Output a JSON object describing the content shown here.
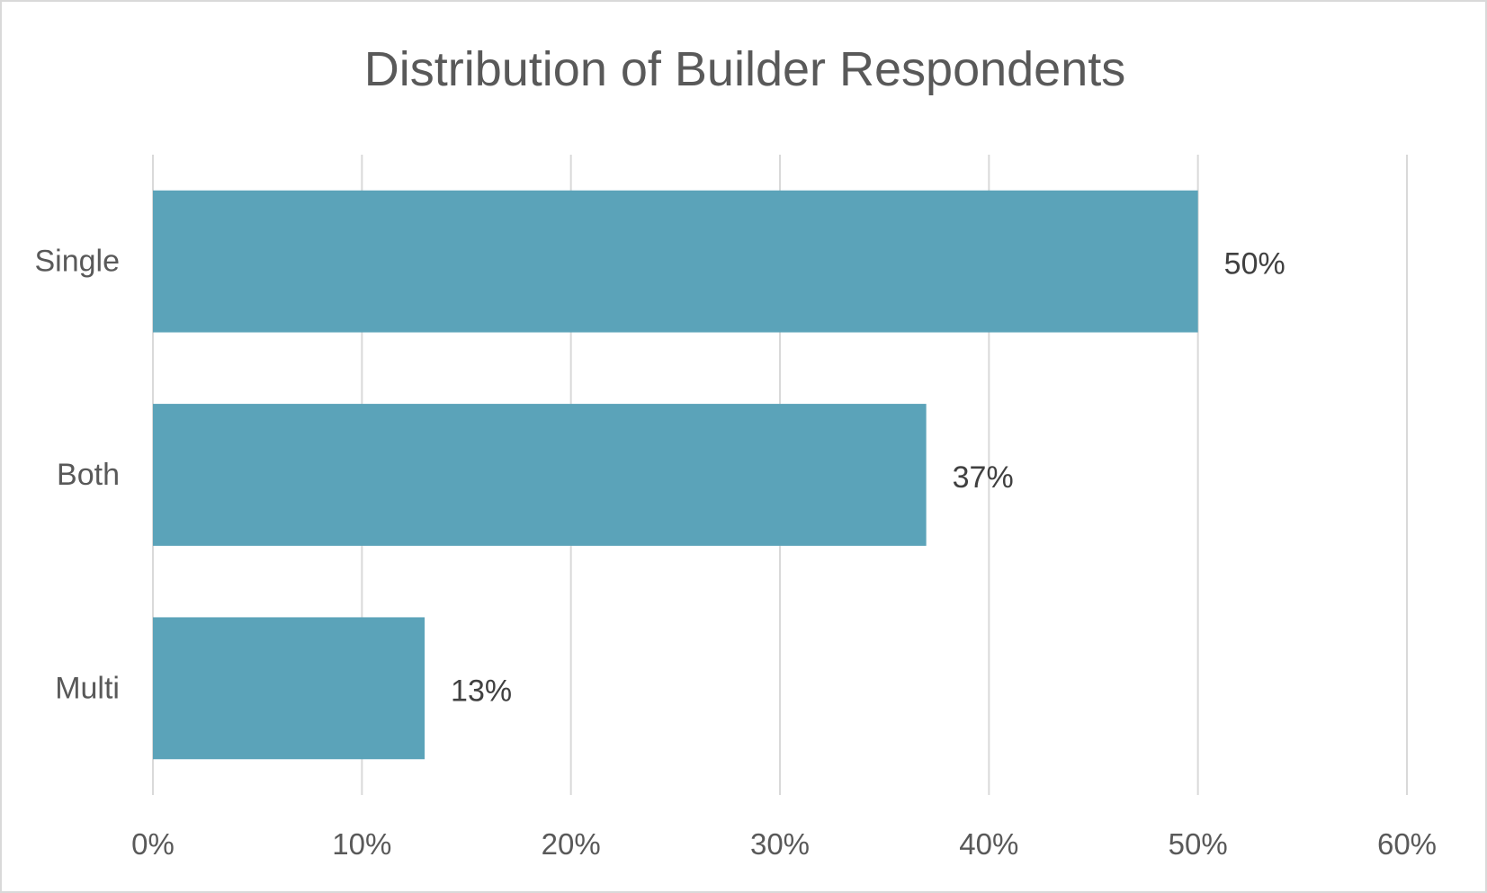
{
  "chart_data": {
    "type": "bar",
    "orientation": "horizontal",
    "title": "Distribution of Builder Respondents",
    "categories": [
      "Single",
      "Both",
      "Multi"
    ],
    "values": [
      50,
      37,
      13
    ],
    "data_labels": [
      "50%",
      "37%",
      "13%"
    ],
    "xlim": [
      0,
      60
    ],
    "x_ticks": [
      0,
      10,
      20,
      30,
      40,
      50,
      60
    ],
    "x_tick_labels": [
      "0%",
      "10%",
      "20%",
      "30%",
      "40%",
      "50%",
      "60%"
    ],
    "xlabel": "",
    "ylabel": "",
    "grid": "vertical",
    "legend": "none",
    "bar_color": "#5ba3b9",
    "grid_color": "#d9d9d9"
  }
}
